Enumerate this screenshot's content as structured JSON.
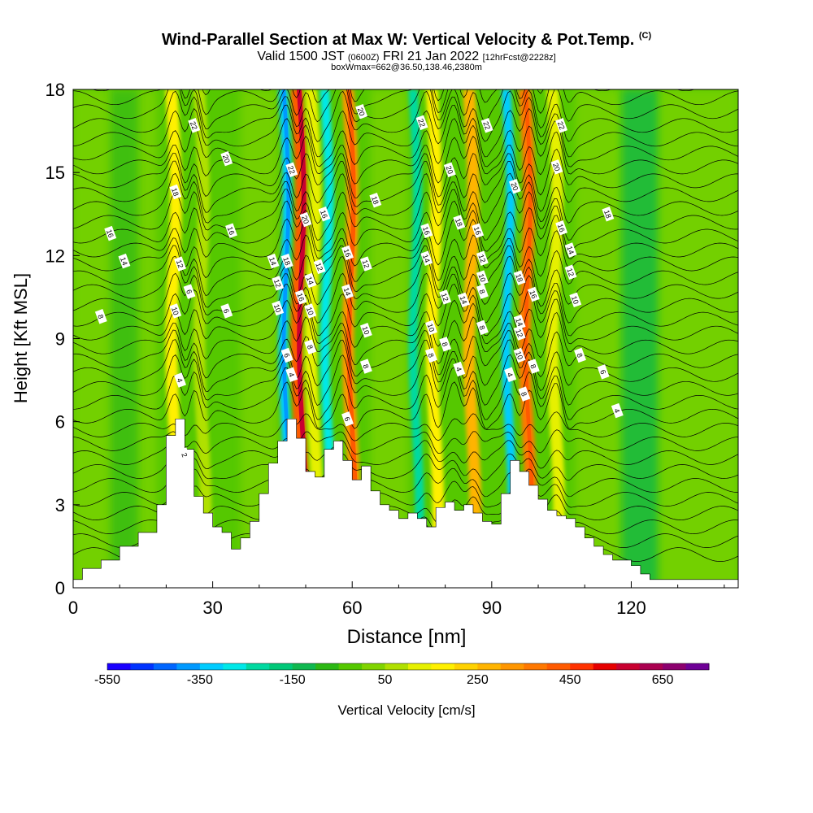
{
  "title": {
    "main": "Wind-Parallel Section at Max W: Vertical Velocity & Pot.Temp.",
    "copyright": "(C)",
    "valid_prefix": "Valid 1500 JST",
    "valid_utc": "(0600Z)",
    "valid_date": "FRI 21 Jan 2022",
    "forecast": "[12hrFcst@2228z]",
    "box_info": "boxWmax=662@36.50,138.46,2380m"
  },
  "chart_data": {
    "type": "heatmap",
    "xlabel": "Distance [nm]",
    "ylabel": "Height [Kft MSL]",
    "xlim": [
      0,
      143
    ],
    "ylim": [
      0,
      18
    ],
    "x_ticks": [
      0,
      30,
      60,
      90,
      120
    ],
    "y_ticks": [
      0,
      3,
      6,
      9,
      12,
      15,
      18
    ],
    "colorbar": {
      "label": "Vertical Velocity [cm/s]",
      "range": [
        -550,
        750
      ],
      "tick_labels": [
        "-550",
        "-350",
        "-150",
        "50",
        "250",
        "450",
        "650"
      ],
      "tick_values": [
        -550,
        -350,
        -150,
        50,
        250,
        450,
        650
      ],
      "colors": [
        "#1a00ff",
        "#0033ff",
        "#0066ff",
        "#0099ff",
        "#00ccff",
        "#00e8e8",
        "#00d9a0",
        "#00c878",
        "#10b850",
        "#2cb814",
        "#55c800",
        "#80d400",
        "#b0e000",
        "#e6f000",
        "#fff000",
        "#ffd200",
        "#ffb400",
        "#ff9600",
        "#ff7800",
        "#ff5a00",
        "#ff3200",
        "#e60000",
        "#c80030",
        "#aa0050",
        "#8c006e",
        "#6e0096"
      ]
    },
    "terrain_profile": {
      "x": [
        0,
        2,
        6,
        10,
        14,
        18,
        20,
        22,
        24,
        26,
        28,
        30,
        32,
        34,
        36,
        38,
        40,
        42,
        44,
        46,
        48,
        50,
        52,
        54,
        56,
        58,
        60,
        62,
        64,
        66,
        68,
        70,
        72,
        74,
        76,
        78,
        80,
        82,
        84,
        86,
        88,
        90,
        92,
        94,
        96,
        98,
        100,
        102,
        104,
        106,
        108,
        110,
        112,
        114,
        116,
        118,
        120,
        122,
        124,
        126,
        130,
        135,
        143
      ],
      "y": [
        0.3,
        0.7,
        1.0,
        1.5,
        2.0,
        3.0,
        5.5,
        6.1,
        5.0,
        3.3,
        2.7,
        2.2,
        2.0,
        1.4,
        1.8,
        2.4,
        3.4,
        4.5,
        5.3,
        6.1,
        5.4,
        4.2,
        4.0,
        5.0,
        5.3,
        4.6,
        3.9,
        4.4,
        3.5,
        3.0,
        2.8,
        2.5,
        2.7,
        2.5,
        2.2,
        2.9,
        3.1,
        2.8,
        3.0,
        2.7,
        2.4,
        2.3,
        3.4,
        4.6,
        4.2,
        3.7,
        3.2,
        2.8,
        2.6,
        2.5,
        2.2,
        1.8,
        1.5,
        1.2,
        1.0,
        1.0,
        0.8,
        0.5,
        0.3,
        0.3,
        0.3,
        0.3,
        0.3
      ]
    },
    "updraft_bands": [
      {
        "x_base": 22,
        "color": "#fff000"
      },
      {
        "x_base": 28,
        "color": "#b0e000"
      },
      {
        "x_base": 49,
        "color": "#ff5a00"
      },
      {
        "x_base": 52,
        "color": "#e6f000"
      },
      {
        "x_base": 60,
        "color": "#ff9600"
      },
      {
        "x_base": 78,
        "color": "#fff000"
      },
      {
        "x_base": 86,
        "color": "#ffb400"
      },
      {
        "x_base": 98,
        "color": "#ff7800"
      },
      {
        "x_base": 104,
        "color": "#e6f000"
      }
    ],
    "downdraft_bands": [
      {
        "x_base": 46,
        "color": "#00ccff"
      },
      {
        "x_base": 55,
        "color": "#00e8e8"
      },
      {
        "x_base": 74,
        "color": "#00d9a0"
      },
      {
        "x_base": 94,
        "color": "#00ccff"
      }
    ],
    "isentrope_labels": [
      {
        "x": 8,
        "y": 12.8,
        "text": "16"
      },
      {
        "x": 11,
        "y": 11.8,
        "text": "14"
      },
      {
        "x": 6,
        "y": 9.8,
        "text": "8"
      },
      {
        "x": 26,
        "y": 16.7,
        "text": "22"
      },
      {
        "x": 33,
        "y": 15.5,
        "text": "20"
      },
      {
        "x": 22,
        "y": 14.3,
        "text": "18"
      },
      {
        "x": 34,
        "y": 12.9,
        "text": "16"
      },
      {
        "x": 23,
        "y": 11.7,
        "text": "12"
      },
      {
        "x": 25,
        "y": 10.7,
        "text": "6"
      },
      {
        "x": 22,
        "y": 10.0,
        "text": "10"
      },
      {
        "x": 33,
        "y": 10.0,
        "text": "6"
      },
      {
        "x": 23,
        "y": 7.5,
        "text": "4"
      },
      {
        "x": 24,
        "y": 4.8,
        "text": "2"
      },
      {
        "x": 47,
        "y": 15.1,
        "text": "22"
      },
      {
        "x": 50,
        "y": 13.3,
        "text": "20"
      },
      {
        "x": 54,
        "y": 13.5,
        "text": "16"
      },
      {
        "x": 46,
        "y": 11.8,
        "text": "18"
      },
      {
        "x": 43,
        "y": 11.8,
        "text": "14"
      },
      {
        "x": 44,
        "y": 11.0,
        "text": "12"
      },
      {
        "x": 44,
        "y": 10.1,
        "text": "10"
      },
      {
        "x": 49,
        "y": 10.5,
        "text": "16"
      },
      {
        "x": 51,
        "y": 10.0,
        "text": "10"
      },
      {
        "x": 53,
        "y": 11.6,
        "text": "12"
      },
      {
        "x": 51,
        "y": 11.1,
        "text": "14"
      },
      {
        "x": 51,
        "y": 8.7,
        "text": "8"
      },
      {
        "x": 46,
        "y": 8.4,
        "text": "6"
      },
      {
        "x": 47,
        "y": 7.7,
        "text": "4"
      },
      {
        "x": 62,
        "y": 17.2,
        "text": "20"
      },
      {
        "x": 65,
        "y": 14.0,
        "text": "18"
      },
      {
        "x": 59,
        "y": 12.1,
        "text": "16"
      },
      {
        "x": 63,
        "y": 11.7,
        "text": "12"
      },
      {
        "x": 59,
        "y": 10.7,
        "text": "14"
      },
      {
        "x": 63,
        "y": 9.3,
        "text": "10"
      },
      {
        "x": 63,
        "y": 8.0,
        "text": "8"
      },
      {
        "x": 59,
        "y": 6.1,
        "text": "6"
      },
      {
        "x": 75,
        "y": 16.8,
        "text": "22"
      },
      {
        "x": 81,
        "y": 15.1,
        "text": "20"
      },
      {
        "x": 76,
        "y": 12.9,
        "text": "16"
      },
      {
        "x": 76,
        "y": 11.9,
        "text": "14"
      },
      {
        "x": 83,
        "y": 13.2,
        "text": "18"
      },
      {
        "x": 87,
        "y": 12.9,
        "text": "16"
      },
      {
        "x": 80,
        "y": 10.5,
        "text": "12"
      },
      {
        "x": 84,
        "y": 10.4,
        "text": "14"
      },
      {
        "x": 77,
        "y": 9.4,
        "text": "10"
      },
      {
        "x": 80,
        "y": 8.8,
        "text": "8"
      },
      {
        "x": 77,
        "y": 8.4,
        "text": "8"
      },
      {
        "x": 83,
        "y": 7.9,
        "text": "4"
      },
      {
        "x": 89,
        "y": 16.7,
        "text": "22"
      },
      {
        "x": 88,
        "y": 11.9,
        "text": "12"
      },
      {
        "x": 88,
        "y": 11.2,
        "text": "10"
      },
      {
        "x": 88,
        "y": 10.7,
        "text": "8"
      },
      {
        "x": 88,
        "y": 9.4,
        "text": "8"
      },
      {
        "x": 95,
        "y": 14.5,
        "text": "20"
      },
      {
        "x": 96,
        "y": 11.2,
        "text": "18"
      },
      {
        "x": 99,
        "y": 10.6,
        "text": "16"
      },
      {
        "x": 96,
        "y": 9.6,
        "text": "14"
      },
      {
        "x": 96,
        "y": 9.2,
        "text": "12"
      },
      {
        "x": 96,
        "y": 8.4,
        "text": "10"
      },
      {
        "x": 94,
        "y": 7.7,
        "text": "4"
      },
      {
        "x": 99,
        "y": 8.0,
        "text": "8"
      },
      {
        "x": 97,
        "y": 7.0,
        "text": "8"
      },
      {
        "x": 105,
        "y": 16.7,
        "text": "22"
      },
      {
        "x": 104,
        "y": 15.2,
        "text": "20"
      },
      {
        "x": 105,
        "y": 13.0,
        "text": "16"
      },
      {
        "x": 107,
        "y": 12.2,
        "text": "14"
      },
      {
        "x": 107,
        "y": 11.4,
        "text": "12"
      },
      {
        "x": 108,
        "y": 10.4,
        "text": "10"
      },
      {
        "x": 109,
        "y": 8.4,
        "text": "8"
      },
      {
        "x": 114,
        "y": 7.8,
        "text": "6"
      },
      {
        "x": 117,
        "y": 6.4,
        "text": "4"
      },
      {
        "x": 115,
        "y": 13.5,
        "text": "18"
      }
    ]
  }
}
